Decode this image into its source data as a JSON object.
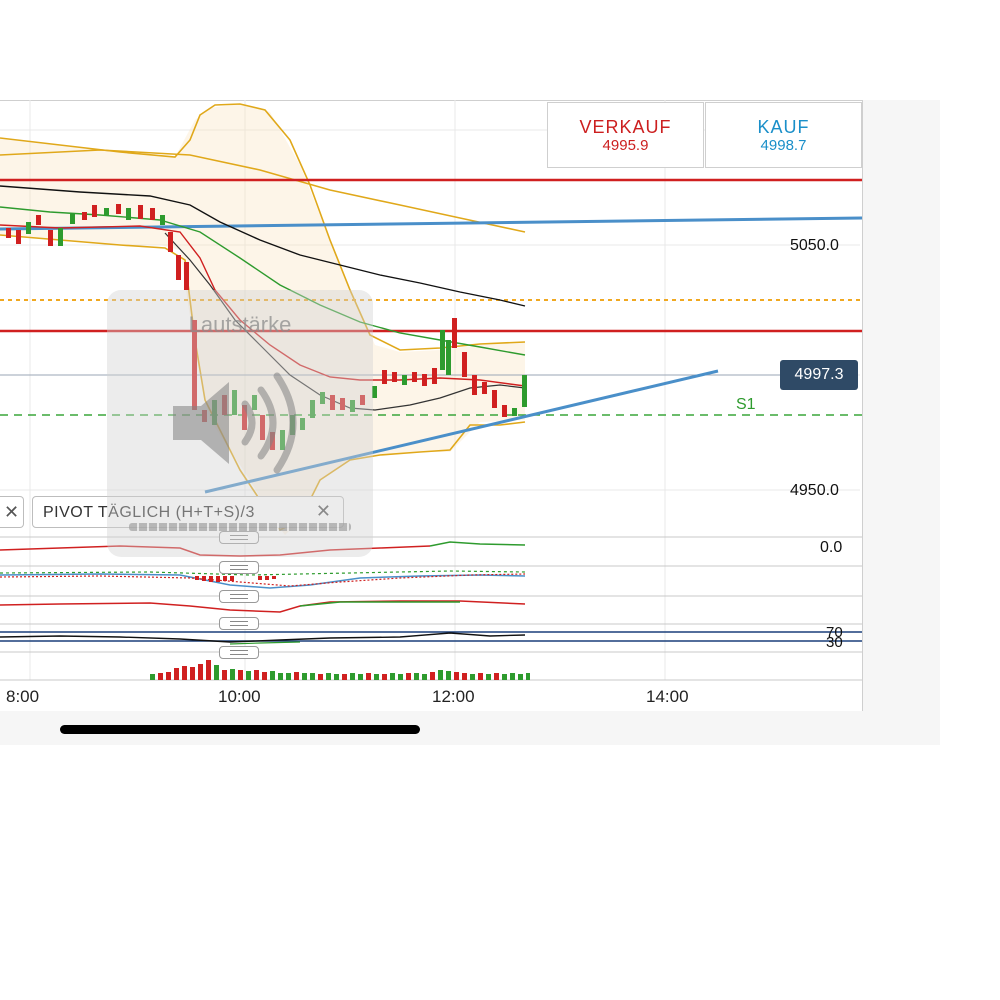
{
  "quotes": {
    "sell_label": "VERKAUF",
    "sell_value": "4995.9",
    "buy_label": "KAUF",
    "buy_value": "4998.7",
    "sell_color": "#cc1f1f",
    "buy_color": "#1a8fc9"
  },
  "price_axis": {
    "upper_label": "5050.0",
    "lower_label": "4950.0"
  },
  "current_price": "4997.3",
  "support_label": "S1",
  "indicator_axis": {
    "macd_zero": "0.0",
    "rsi_upper": "70",
    "rsi_lower": "30"
  },
  "time_axis": [
    "8:00",
    "10:00",
    "12:00",
    "14:00"
  ],
  "pivot_indicator": {
    "label": "PIVOT  TÄGLICH  (H+T+S)/3",
    "close_symbol": "✕"
  },
  "left_close_symbol": "✕",
  "volume_overlay": {
    "title": "Lautstärke",
    "icon": "speaker-icon"
  },
  "colors": {
    "bullish": "#2e9b2e",
    "bearish": "#d02020",
    "resistance": "#d02020",
    "trendline": "#4a8fc9",
    "bollinger": "#e0a81a",
    "price_tag_bg": "#2f4a66"
  }
}
